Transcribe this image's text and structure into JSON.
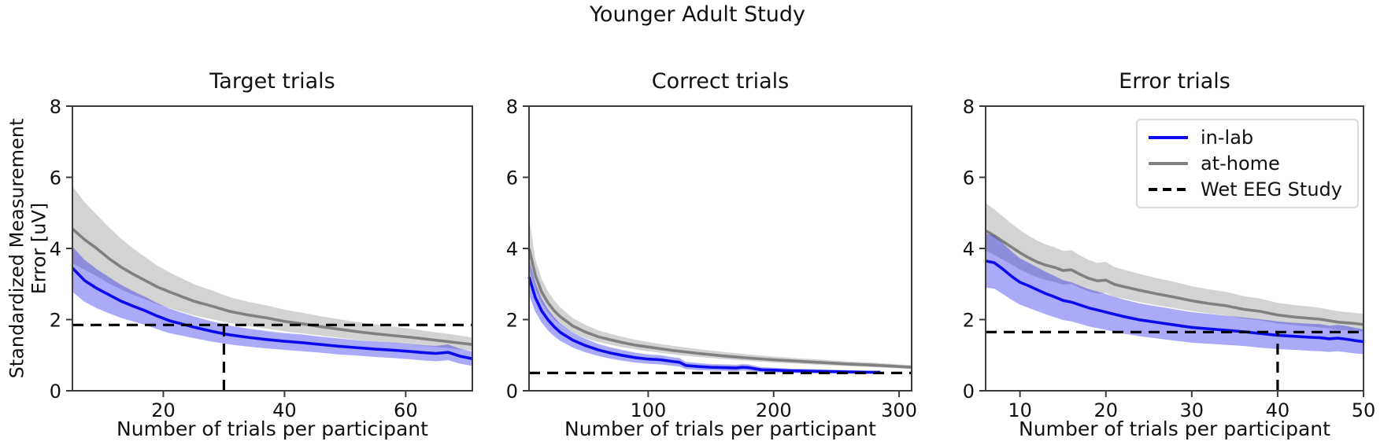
{
  "figure": {
    "suptitle": "Younger Adult Study",
    "ylabel_line1": "Standardized Measurement",
    "ylabel_line2": "Error [uV]",
    "background": "#ffffff",
    "colors": {
      "in_lab": "#0b0bee",
      "at_home": "#808080",
      "reference": "#000000",
      "spine": "#3b3b3b"
    }
  },
  "legend": {
    "items": [
      {
        "label": "in-lab",
        "style": "solid",
        "color": "#0b0bee"
      },
      {
        "label": "at-home",
        "style": "solid",
        "color": "#808080"
      },
      {
        "label": "Wet EEG Study",
        "style": "dashed",
        "color": "#000000"
      }
    ],
    "position": "upper-right-of-error-trials"
  },
  "chart_data": [
    {
      "type": "line",
      "title": "Target trials",
      "xlabel": "Number of trials per participant",
      "ylabel": "Standardized Measurement Error [uV]",
      "xlim": [
        5,
        71
      ],
      "ylim": [
        0,
        8
      ],
      "xticks": [
        20,
        40,
        60
      ],
      "yticks": [
        0,
        2,
        4,
        6,
        8
      ],
      "grid": false,
      "reference_h": 1.85,
      "reference_v": 30,
      "series": [
        {
          "name": "at-home",
          "color": "#808080",
          "x": [
            5,
            7,
            9,
            11,
            13,
            15,
            17,
            19,
            21,
            23,
            25,
            28,
            31,
            34,
            37,
            40,
            43,
            46,
            49,
            52,
            55,
            58,
            61,
            63,
            65,
            67,
            69,
            71
          ],
          "mean": [
            4.55,
            4.25,
            4.0,
            3.72,
            3.48,
            3.28,
            3.1,
            2.92,
            2.78,
            2.65,
            2.52,
            2.38,
            2.23,
            2.13,
            2.05,
            1.95,
            1.88,
            1.8,
            1.73,
            1.66,
            1.6,
            1.55,
            1.5,
            1.46,
            1.42,
            1.38,
            1.34,
            1.3
          ],
          "lo": [
            3.58,
            3.4,
            3.22,
            3.02,
            2.85,
            2.7,
            2.57,
            2.43,
            2.32,
            2.22,
            2.12,
            2.01,
            1.9,
            1.82,
            1.75,
            1.67,
            1.61,
            1.55,
            1.49,
            1.43,
            1.38,
            1.34,
            1.3,
            1.26,
            1.23,
            1.2,
            1.16,
            1.13
          ],
          "hi": [
            5.75,
            5.3,
            4.95,
            4.6,
            4.28,
            4.0,
            3.76,
            3.52,
            3.33,
            3.16,
            3.0,
            2.82,
            2.63,
            2.5,
            2.4,
            2.28,
            2.19,
            2.09,
            2.01,
            1.93,
            1.86,
            1.8,
            1.74,
            1.69,
            1.64,
            1.6,
            1.55,
            1.5
          ]
        },
        {
          "name": "in-lab",
          "color": "#0b0bee",
          "x": [
            5,
            7,
            9,
            11,
            13,
            15,
            17,
            19,
            21,
            23,
            25,
            28,
            31,
            34,
            37,
            40,
            43,
            46,
            49,
            52,
            55,
            58,
            61,
            63,
            65,
            67,
            69,
            71
          ],
          "mean": [
            3.45,
            3.1,
            2.88,
            2.7,
            2.52,
            2.38,
            2.25,
            2.1,
            1.97,
            1.88,
            1.79,
            1.67,
            1.57,
            1.5,
            1.44,
            1.39,
            1.35,
            1.3,
            1.25,
            1.21,
            1.17,
            1.14,
            1.1,
            1.07,
            1.05,
            1.08,
            0.97,
            0.9
          ],
          "lo": [
            2.78,
            2.5,
            2.32,
            2.18,
            2.05,
            1.95,
            1.85,
            1.73,
            1.62,
            1.55,
            1.48,
            1.38,
            1.3,
            1.24,
            1.19,
            1.15,
            1.11,
            1.07,
            1.02,
            0.99,
            0.95,
            0.92,
            0.88,
            0.85,
            0.83,
            0.86,
            0.76,
            0.7
          ],
          "hi": [
            4.05,
            3.68,
            3.42,
            3.2,
            2.98,
            2.8,
            2.64,
            2.46,
            2.31,
            2.2,
            2.09,
            1.95,
            1.83,
            1.75,
            1.68,
            1.62,
            1.58,
            1.52,
            1.47,
            1.42,
            1.38,
            1.35,
            1.31,
            1.28,
            1.26,
            1.3,
            1.18,
            1.1
          ]
        }
      ]
    },
    {
      "type": "line",
      "title": "Correct trials",
      "xlabel": "Number of trials per participant",
      "ylabel": "Standardized Measurement Error [uV]",
      "xlim": [
        5,
        310
      ],
      "ylim": [
        0,
        8
      ],
      "xticks": [
        100,
        200,
        300
      ],
      "yticks": [
        0,
        2,
        4,
        6,
        8
      ],
      "grid": false,
      "reference_h": 0.5,
      "reference_v": null,
      "series": [
        {
          "name": "at-home",
          "color": "#808080",
          "x": [
            5,
            10,
            15,
            20,
            25,
            30,
            40,
            50,
            60,
            70,
            80,
            90,
            100,
            120,
            140,
            160,
            180,
            200,
            220,
            240,
            260,
            280,
            300,
            310
          ],
          "mean": [
            4.0,
            3.25,
            2.78,
            2.48,
            2.25,
            2.08,
            1.82,
            1.65,
            1.52,
            1.43,
            1.35,
            1.28,
            1.23,
            1.13,
            1.05,
            0.98,
            0.92,
            0.87,
            0.83,
            0.79,
            0.75,
            0.72,
            0.68,
            0.66
          ],
          "lo": [
            3.45,
            2.85,
            2.46,
            2.2,
            2.0,
            1.86,
            1.63,
            1.48,
            1.37,
            1.29,
            1.22,
            1.16,
            1.11,
            1.02,
            0.95,
            0.89,
            0.84,
            0.79,
            0.76,
            0.72,
            0.69,
            0.66,
            0.63,
            0.61
          ],
          "hi": [
            4.9,
            3.7,
            3.15,
            2.8,
            2.54,
            2.34,
            2.04,
            1.85,
            1.7,
            1.6,
            1.51,
            1.43,
            1.37,
            1.26,
            1.17,
            1.09,
            1.02,
            0.96,
            0.91,
            0.87,
            0.82,
            0.79,
            0.74,
            0.72
          ]
        },
        {
          "name": "in-lab",
          "color": "#0b0bee",
          "x": [
            5,
            10,
            15,
            20,
            25,
            30,
            40,
            50,
            60,
            70,
            80,
            90,
            100,
            110,
            120,
            125,
            130,
            140,
            150,
            160,
            170,
            175,
            180,
            190,
            200,
            215,
            230,
            245,
            260,
            275,
            285
          ],
          "mean": [
            3.2,
            2.62,
            2.25,
            2.0,
            1.8,
            1.64,
            1.42,
            1.27,
            1.15,
            1.06,
            0.99,
            0.93,
            0.89,
            0.87,
            0.82,
            0.8,
            0.71,
            0.68,
            0.66,
            0.65,
            0.64,
            0.66,
            0.65,
            0.59,
            0.58,
            0.56,
            0.55,
            0.54,
            0.53,
            0.52,
            0.52
          ],
          "lo": [
            2.7,
            2.22,
            1.92,
            1.7,
            1.53,
            1.4,
            1.21,
            1.08,
            0.98,
            0.9,
            0.84,
            0.79,
            0.76,
            0.74,
            0.7,
            0.68,
            0.61,
            0.58,
            0.57,
            0.56,
            0.55,
            0.57,
            0.56,
            0.52,
            0.51,
            0.5,
            0.49,
            0.49,
            0.48,
            0.48,
            0.48
          ],
          "hi": [
            3.72,
            3.05,
            2.6,
            2.3,
            2.07,
            1.88,
            1.63,
            1.46,
            1.32,
            1.22,
            1.14,
            1.07,
            1.02,
            1.0,
            0.94,
            0.92,
            0.81,
            0.78,
            0.75,
            0.74,
            0.73,
            0.75,
            0.74,
            0.66,
            0.65,
            0.62,
            0.61,
            0.59,
            0.58,
            0.56,
            0.56
          ]
        }
      ]
    },
    {
      "type": "line",
      "title": "Error trials",
      "xlabel": "Number of trials per participant",
      "ylabel": "Standardized Measurement Error [uV]",
      "xlim": [
        6,
        50
      ],
      "ylim": [
        0,
        8
      ],
      "xticks": [
        10,
        20,
        30,
        40,
        50
      ],
      "yticks": [
        0,
        2,
        4,
        6,
        8
      ],
      "grid": false,
      "reference_h": 1.65,
      "reference_v": 40,
      "series": [
        {
          "name": "at-home",
          "color": "#808080",
          "x": [
            6,
            7,
            8,
            9,
            10,
            11,
            12,
            13,
            14,
            15,
            16,
            17,
            18,
            19,
            20,
            21,
            22,
            24,
            26,
            28,
            30,
            32,
            34,
            36,
            38,
            40,
            42,
            44,
            45,
            46,
            47,
            48,
            49,
            50
          ],
          "mean": [
            4.5,
            4.36,
            4.2,
            4.04,
            3.88,
            3.74,
            3.62,
            3.53,
            3.47,
            3.38,
            3.4,
            3.27,
            3.16,
            3.09,
            3.11,
            2.99,
            2.93,
            2.82,
            2.72,
            2.63,
            2.53,
            2.45,
            2.39,
            2.29,
            2.23,
            2.13,
            2.07,
            2.03,
            2.01,
            1.97,
            1.93,
            1.91,
            1.89,
            1.86
          ],
          "lo": [
            3.93,
            3.82,
            3.68,
            3.55,
            3.41,
            3.29,
            3.19,
            3.11,
            3.06,
            2.98,
            3.0,
            2.89,
            2.79,
            2.73,
            2.75,
            2.64,
            2.59,
            2.49,
            2.4,
            2.32,
            2.24,
            2.17,
            2.12,
            2.03,
            1.98,
            1.89,
            1.84,
            1.8,
            1.78,
            1.75,
            1.71,
            1.7,
            1.68,
            1.66
          ],
          "hi": [
            5.28,
            5.1,
            4.9,
            4.7,
            4.52,
            4.36,
            4.22,
            4.11,
            4.04,
            3.93,
            3.95,
            3.8,
            3.68,
            3.59,
            3.62,
            3.48,
            3.41,
            3.28,
            3.16,
            3.06,
            2.94,
            2.85,
            2.78,
            2.66,
            2.59,
            2.47,
            2.41,
            2.36,
            2.33,
            2.28,
            2.24,
            2.21,
            2.19,
            2.16
          ]
        },
        {
          "name": "in-lab",
          "color": "#0b0bee",
          "x": [
            6,
            7,
            8,
            9,
            10,
            11,
            12,
            13,
            14,
            15,
            16,
            17,
            18,
            19,
            20,
            21,
            22,
            24,
            26,
            28,
            30,
            32,
            34,
            36,
            38,
            40,
            42,
            44,
            45,
            46,
            47,
            48,
            49,
            50
          ],
          "mean": [
            3.65,
            3.6,
            3.42,
            3.22,
            3.05,
            2.95,
            2.84,
            2.73,
            2.64,
            2.54,
            2.49,
            2.41,
            2.33,
            2.27,
            2.21,
            2.15,
            2.09,
            1.99,
            1.92,
            1.85,
            1.78,
            1.74,
            1.7,
            1.66,
            1.61,
            1.56,
            1.53,
            1.5,
            1.49,
            1.46,
            1.48,
            1.45,
            1.41,
            1.38
          ],
          "lo": [
            2.9,
            2.87,
            2.72,
            2.56,
            2.42,
            2.33,
            2.24,
            2.15,
            2.07,
            1.99,
            1.95,
            1.88,
            1.81,
            1.76,
            1.71,
            1.66,
            1.61,
            1.53,
            1.47,
            1.41,
            1.35,
            1.32,
            1.29,
            1.26,
            1.21,
            1.17,
            1.15,
            1.12,
            1.11,
            1.09,
            1.11,
            1.08,
            1.05,
            1.03
          ],
          "hi": [
            4.42,
            4.36,
            4.15,
            3.92,
            3.72,
            3.6,
            3.47,
            3.34,
            3.23,
            3.11,
            3.05,
            2.95,
            2.86,
            2.79,
            2.72,
            2.64,
            2.57,
            2.45,
            2.37,
            2.29,
            2.21,
            2.16,
            2.11,
            2.06,
            2.01,
            1.95,
            1.91,
            1.88,
            1.87,
            1.83,
            1.85,
            1.82,
            1.77,
            1.73
          ]
        }
      ]
    }
  ]
}
